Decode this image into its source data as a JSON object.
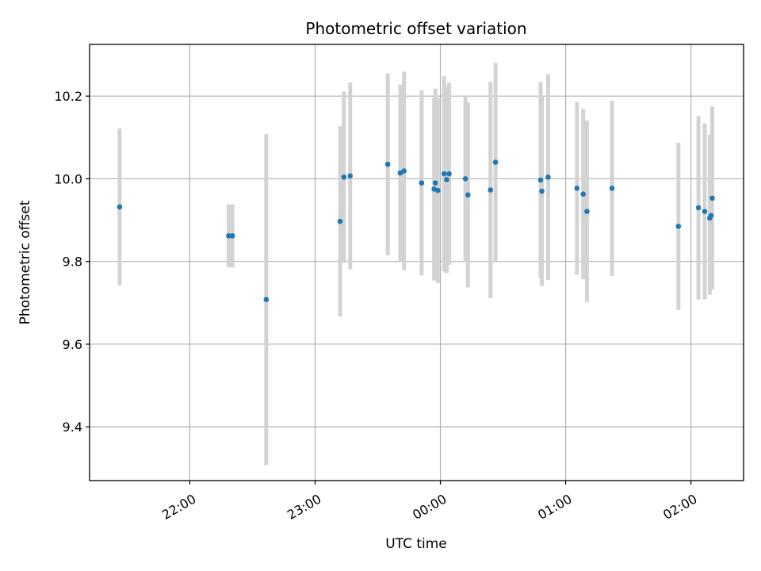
{
  "chart_data": {
    "type": "scatter",
    "title": "Photometric offset variation",
    "xlabel": "UTC time",
    "ylabel": "Photometric offset",
    "x_unit": "UTC time (hours, day 1 = hours + 24)",
    "xlim": [
      21.2,
      26.42
    ],
    "ylim": [
      9.27,
      10.325
    ],
    "x_ticks": [
      {
        "value": 22,
        "label": "22:00"
      },
      {
        "value": 23,
        "label": "23:00"
      },
      {
        "value": 24,
        "label": "00:00"
      },
      {
        "value": 25,
        "label": "01:00"
      },
      {
        "value": 26,
        "label": "02:00"
      }
    ],
    "y_ticks": [
      {
        "value": 9.4,
        "label": "9.4"
      },
      {
        "value": 9.6,
        "label": "9.6"
      },
      {
        "value": 9.8,
        "label": "9.8"
      },
      {
        "value": 10.0,
        "label": "10.0"
      },
      {
        "value": 10.2,
        "label": "10.2"
      }
    ],
    "grid": true,
    "colors": {
      "point": "#1f77b4",
      "errorbar": "#d3d3d3",
      "grid": "#b0b0b0"
    },
    "series": [
      {
        "points": [
          {
            "x": 21.44,
            "y": 9.932,
            "ylow": 9.742,
            "yhigh": 10.122
          },
          {
            "x": 22.31,
            "y": 9.862,
            "ylow": 9.786,
            "yhigh": 9.938
          },
          {
            "x": 22.34,
            "y": 9.862,
            "ylow": 9.786,
            "yhigh": 9.938
          },
          {
            "x": 22.61,
            "y": 9.708,
            "ylow": 9.308,
            "yhigh": 10.108
          },
          {
            "x": 23.2,
            "y": 9.897,
            "ylow": 9.667,
            "yhigh": 10.127
          },
          {
            "x": 23.23,
            "y": 10.004,
            "ylow": 9.797,
            "yhigh": 10.211
          },
          {
            "x": 23.28,
            "y": 10.007,
            "ylow": 9.781,
            "yhigh": 10.233
          },
          {
            "x": 23.58,
            "y": 10.035,
            "ylow": 9.815,
            "yhigh": 10.255
          },
          {
            "x": 23.68,
            "y": 10.014,
            "ylow": 9.8,
            "yhigh": 10.228
          },
          {
            "x": 23.71,
            "y": 10.019,
            "ylow": 9.779,
            "yhigh": 10.259
          },
          {
            "x": 23.85,
            "y": 9.99,
            "ylow": 9.766,
            "yhigh": 10.214
          },
          {
            "x": 23.95,
            "y": 9.975,
            "ylow": 9.754,
            "yhigh": 10.196
          },
          {
            "x": 23.96,
            "y": 9.99,
            "ylow": 9.762,
            "yhigh": 10.218
          },
          {
            "x": 23.98,
            "y": 9.972,
            "ylow": 9.748,
            "yhigh": 10.196
          },
          {
            "x": 24.03,
            "y": 10.012,
            "ylow": 9.776,
            "yhigh": 10.248
          },
          {
            "x": 24.05,
            "y": 9.998,
            "ylow": 9.772,
            "yhigh": 10.224
          },
          {
            "x": 24.07,
            "y": 10.012,
            "ylow": 9.792,
            "yhigh": 10.232
          },
          {
            "x": 24.2,
            "y": 10.0,
            "ylow": 9.8,
            "yhigh": 10.2
          },
          {
            "x": 24.22,
            "y": 9.961,
            "ylow": 9.737,
            "yhigh": 10.185
          },
          {
            "x": 24.4,
            "y": 9.973,
            "ylow": 9.711,
            "yhigh": 10.235
          },
          {
            "x": 24.44,
            "y": 10.04,
            "ylow": 9.8,
            "yhigh": 10.28
          },
          {
            "x": 24.8,
            "y": 9.997,
            "ylow": 9.76,
            "yhigh": 10.234
          },
          {
            "x": 24.81,
            "y": 9.97,
            "ylow": 9.741,
            "yhigh": 10.199
          },
          {
            "x": 24.86,
            "y": 10.004,
            "ylow": 9.755,
            "yhigh": 10.253
          },
          {
            "x": 25.09,
            "y": 9.977,
            "ylow": 9.768,
            "yhigh": 10.186
          },
          {
            "x": 25.14,
            "y": 9.963,
            "ylow": 9.757,
            "yhigh": 10.169
          },
          {
            "x": 25.17,
            "y": 9.921,
            "ylow": 9.701,
            "yhigh": 10.141
          },
          {
            "x": 25.37,
            "y": 9.977,
            "ylow": 9.765,
            "yhigh": 10.189
          },
          {
            "x": 25.9,
            "y": 9.885,
            "ylow": 9.683,
            "yhigh": 10.087
          },
          {
            "x": 26.06,
            "y": 9.93,
            "ylow": 9.708,
            "yhigh": 10.152
          },
          {
            "x": 26.11,
            "y": 9.921,
            "ylow": 9.708,
            "yhigh": 10.134
          },
          {
            "x": 26.15,
            "y": 9.905,
            "ylow": 9.719,
            "yhigh": 10.107
          },
          {
            "x": 26.16,
            "y": 9.911,
            "ylow": 9.735,
            "yhigh": 10.087
          },
          {
            "x": 26.17,
            "y": 9.953,
            "ylow": 9.733,
            "yhigh": 10.175
          }
        ]
      }
    ]
  }
}
